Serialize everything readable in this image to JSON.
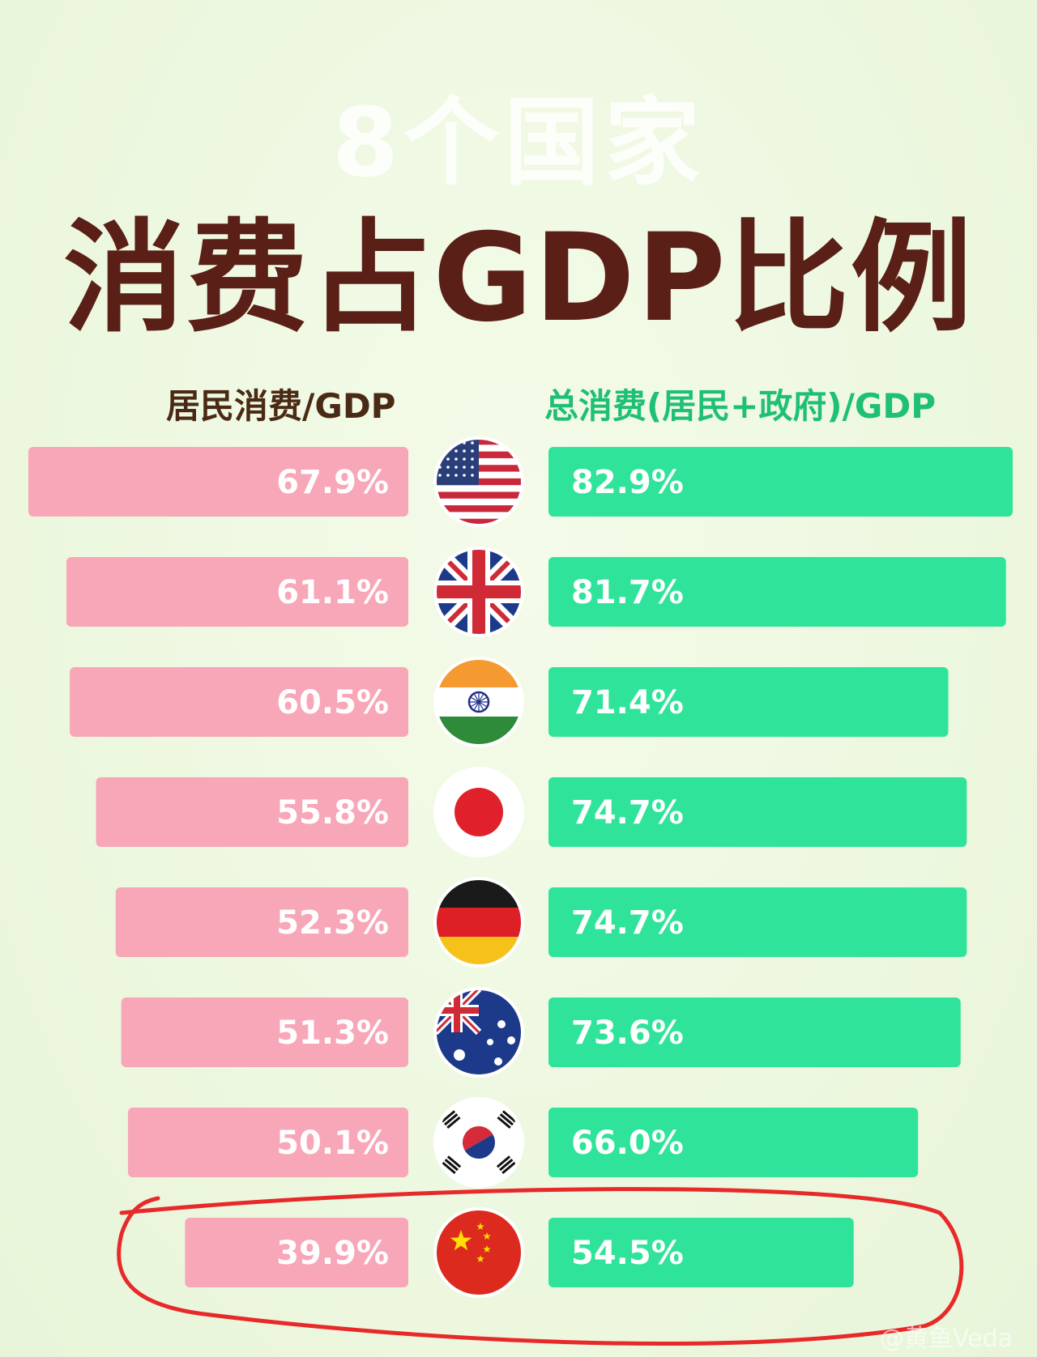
{
  "subtitle": "8个国家",
  "title": "消费占GDP比例",
  "watermark": "@黄鱼Veda",
  "colors": {
    "left_bar": "#f7a7b8",
    "right_bar": "#2fe49a",
    "title": "#5a1f16",
    "right_header": "#1fbf76",
    "highlight": "#e8292a"
  },
  "chart_data": {
    "type": "bar",
    "orientation": "horizontal-diverging",
    "categories": [
      "USA",
      "UK",
      "India",
      "Japan",
      "Germany",
      "Australia",
      "South Korea",
      "China"
    ],
    "category_icons": [
      "us-flag-icon",
      "uk-flag-icon",
      "india-flag-icon",
      "japan-flag-icon",
      "germany-flag-icon",
      "australia-flag-icon",
      "korea-flag-icon",
      "china-flag-icon"
    ],
    "series": [
      {
        "name": "居民消费/GDP",
        "labels": [
          "67.9%",
          "61.1%",
          "60.5%",
          "55.8%",
          "52.3%",
          "51.3%",
          "50.1%",
          "39.9%"
        ],
        "values": [
          67.9,
          61.1,
          60.5,
          55.8,
          52.3,
          51.3,
          50.1,
          39.9
        ]
      },
      {
        "name": "总消费(居民+政府)/GDP",
        "labels": [
          "82.9%",
          "81.7%",
          "71.4%",
          "74.7%",
          "74.7%",
          "73.6%",
          "66.0%",
          "54.5%"
        ],
        "values": [
          82.9,
          81.7,
          71.4,
          74.7,
          74.7,
          73.6,
          66.0,
          54.5
        ]
      }
    ],
    "highlighted_category": "China"
  }
}
